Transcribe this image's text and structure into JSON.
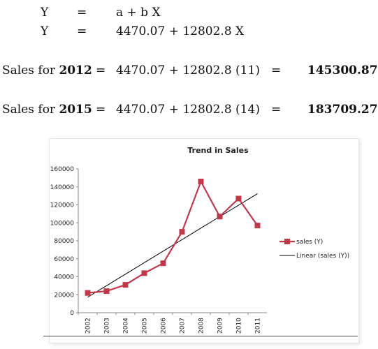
{
  "equations": {
    "line1": {
      "lhs": "Y",
      "eq": "=",
      "rhs": "a + b X"
    },
    "line2": {
      "lhs": "Y",
      "eq": "=",
      "rhs": "4470.07  +  12802.8 X"
    },
    "sales2012": {
      "label_prefix": "Sales for ",
      "year": "2012",
      "eq1": "=",
      "expr": "4470.07  +  12802.8 (11)",
      "eq2": "=",
      "result": "145300.87"
    },
    "sales2015": {
      "label_prefix": "Sales for ",
      "year": "2015",
      "eq1": "=",
      "expr": "4470.07  +  12802.8 (14)",
      "eq2": "=",
      "result": "183709.27"
    }
  },
  "chart_data": {
    "type": "line",
    "title": "Trend in Sales",
    "categories": [
      "2002",
      "2003",
      "2004",
      "2005",
      "2006",
      "2007",
      "2008",
      "2009",
      "2010",
      "2011"
    ],
    "ylim": [
      0,
      160000
    ],
    "yticks": [
      "0",
      "20000",
      "40000",
      "60000",
      "80000",
      "100000",
      "120000",
      "140000",
      "160000"
    ],
    "series": [
      {
        "name": "sales (Y)",
        "color": "#c0394b",
        "marker": "square",
        "values": [
          22000,
          24000,
          31000,
          44000,
          55000,
          90000,
          146000,
          107000,
          127000,
          97000
        ]
      },
      {
        "name": "Linear (sales (Y))",
        "color": "#000000",
        "marker": "none",
        "values": [
          17273,
          30076,
          42879,
          55681,
          68484,
          81287,
          94090,
          106893,
          119695,
          132498
        ]
      }
    ],
    "legend_position": "right",
    "grid": false
  }
}
